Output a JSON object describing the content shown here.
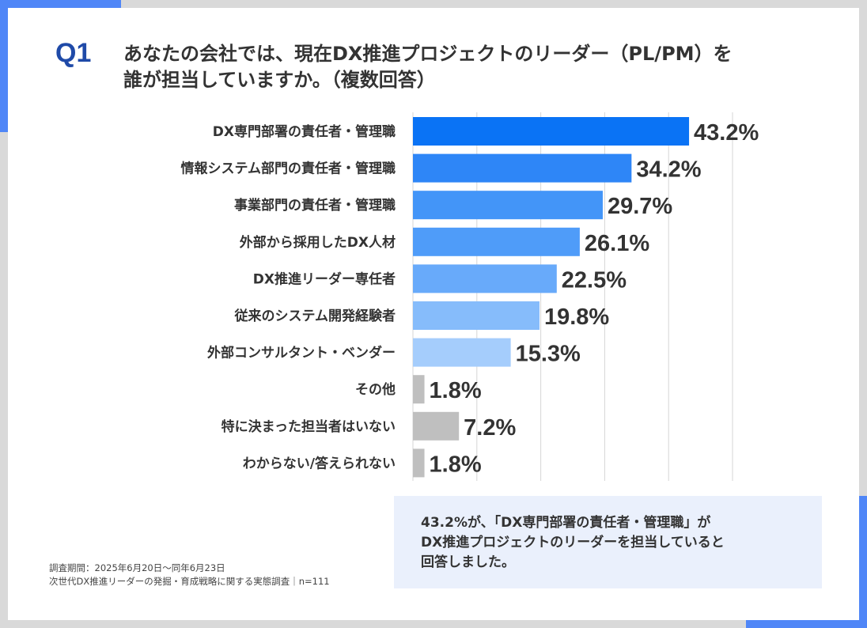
{
  "question_number": "Q1",
  "question_lines": [
    "あなたの会社では、現在DX推進プロジェクトのリーダー（PL/PM）を",
    "誰が担当していますか。（複数回答）"
  ],
  "chart_data": {
    "type": "bar",
    "orientation": "horizontal",
    "title": "あなたの会社では、現在DX推進プロジェクトのリーダー（PL/PM）を誰が担当していますか。（複数回答）",
    "categories": [
      "DX専門部署の責任者・管理職",
      "情報システム部門の責任者・管理職",
      "事業部門の責任者・管理職",
      "外部から採用したDX人材",
      "DX推進リーダー専任者",
      "従来のシステム開発経験者",
      "外部コンサルタント・ベンダー",
      "その他",
      "特に決まった担当者はいない",
      "わからない/答えられない"
    ],
    "values": [
      43.2,
      34.2,
      29.7,
      26.1,
      22.5,
      19.8,
      15.3,
      1.8,
      7.2,
      1.8
    ],
    "value_labels": [
      "43.2%",
      "34.2%",
      "29.7%",
      "26.1%",
      "22.5%",
      "19.8%",
      "15.3%",
      "1.8%",
      "7.2%",
      "1.8%"
    ],
    "colors": [
      "#0a73f5",
      "#2e86f7",
      "#4395f8",
      "#4f9cf9",
      "#68aafa",
      "#86bcfb",
      "#a5cdfc",
      "#bfbfbf",
      "#bfbfbf",
      "#bfbfbf"
    ],
    "xlim": [
      0,
      50
    ],
    "grid": true,
    "unit": "%"
  },
  "callout_lines": [
    "43.2%が、「DX専門部署の責任者・管理職」が",
    "DX推進プロジェクトのリーダーを担当していると",
    "回答しました。"
  ],
  "notes": [
    "調査期間：2025年6月20日〜同年6月23日",
    "次世代DX推進リーダーの発掘・育成戦略に関する実態調査｜n=111"
  ]
}
